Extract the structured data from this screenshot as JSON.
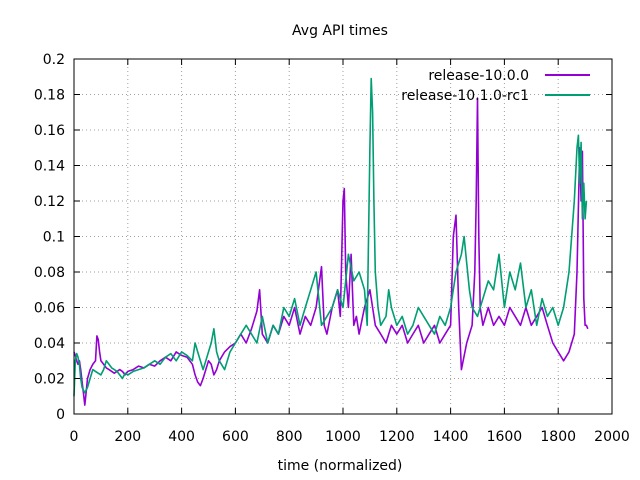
{
  "chart_data": {
    "type": "line",
    "title": "Avg API times",
    "xlabel": "time (normalized)",
    "ylabel": "",
    "xlim": [
      0,
      2000
    ],
    "ylim": [
      0,
      0.2
    ],
    "xticks": [
      "0",
      "200",
      "400",
      "600",
      "800",
      "1000",
      "1200",
      "1400",
      "1600",
      "1800",
      "2000"
    ],
    "yticks": [
      "0",
      "0.02",
      "0.04",
      "0.06",
      "0.08",
      "0.1",
      "0.12",
      "0.14",
      "0.16",
      "0.18",
      "0.2"
    ],
    "grid": true,
    "legend_position": "top-right",
    "series": [
      {
        "name": "release-10.0.0",
        "color": "#9400d3",
        "x": [
          0,
          5,
          10,
          15,
          20,
          25,
          30,
          35,
          40,
          45,
          50,
          60,
          70,
          80,
          85,
          90,
          95,
          100,
          110,
          120,
          130,
          140,
          150,
          160,
          170,
          180,
          190,
          200,
          220,
          240,
          260,
          280,
          300,
          320,
          340,
          360,
          380,
          400,
          420,
          440,
          450,
          460,
          470,
          480,
          490,
          500,
          510,
          520,
          530,
          540,
          560,
          580,
          600,
          620,
          640,
          660,
          680,
          690,
          700,
          720,
          740,
          760,
          780,
          800,
          820,
          840,
          860,
          880,
          900,
          920,
          930,
          940,
          960,
          980,
          990,
          1000,
          1005,
          1010,
          1020,
          1030,
          1040,
          1050,
          1060,
          1080,
          1100,
          1120,
          1140,
          1160,
          1180,
          1200,
          1220,
          1240,
          1260,
          1280,
          1300,
          1320,
          1340,
          1360,
          1380,
          1400,
          1410,
          1420,
          1430,
          1440,
          1460,
          1480,
          1490,
          1495,
          1500,
          1505,
          1510,
          1520,
          1540,
          1560,
          1580,
          1600,
          1620,
          1640,
          1660,
          1680,
          1700,
          1720,
          1740,
          1760,
          1780,
          1800,
          1820,
          1840,
          1860,
          1870,
          1880,
          1885,
          1890,
          1895,
          1900,
          1905,
          1910
        ],
        "y": [
          0.035,
          0.033,
          0.03,
          0.028,
          0.03,
          0.025,
          0.018,
          0.012,
          0.005,
          0.012,
          0.02,
          0.025,
          0.028,
          0.03,
          0.044,
          0.042,
          0.035,
          0.03,
          0.028,
          0.026,
          0.025,
          0.024,
          0.023,
          0.024,
          0.025,
          0.024,
          0.022,
          0.024,
          0.025,
          0.027,
          0.026,
          0.028,
          0.027,
          0.03,
          0.032,
          0.03,
          0.035,
          0.033,
          0.032,
          0.028,
          0.022,
          0.018,
          0.016,
          0.02,
          0.025,
          0.03,
          0.028,
          0.022,
          0.025,
          0.03,
          0.035,
          0.038,
          0.04,
          0.045,
          0.04,
          0.048,
          0.058,
          0.07,
          0.045,
          0.04,
          0.05,
          0.045,
          0.055,
          0.05,
          0.06,
          0.045,
          0.055,
          0.05,
          0.06,
          0.083,
          0.05,
          0.045,
          0.06,
          0.07,
          0.055,
          0.12,
          0.127,
          0.08,
          0.06,
          0.09,
          0.05,
          0.055,
          0.045,
          0.06,
          0.07,
          0.05,
          0.045,
          0.04,
          0.05,
          0.045,
          0.05,
          0.04,
          0.045,
          0.05,
          0.04,
          0.045,
          0.05,
          0.04,
          0.045,
          0.05,
          0.1,
          0.112,
          0.06,
          0.025,
          0.04,
          0.05,
          0.08,
          0.12,
          0.178,
          0.1,
          0.06,
          0.05,
          0.06,
          0.05,
          0.055,
          0.05,
          0.06,
          0.055,
          0.05,
          0.06,
          0.05,
          0.055,
          0.06,
          0.05,
          0.04,
          0.035,
          0.03,
          0.035,
          0.045,
          0.08,
          0.15,
          0.12,
          0.148,
          0.065,
          0.05,
          0.05,
          0.048
        ]
      },
      {
        "name": "release-10.1.0-rc1",
        "color": "#009e73",
        "x": [
          0,
          5,
          10,
          15,
          20,
          25,
          30,
          40,
          50,
          60,
          70,
          80,
          90,
          100,
          110,
          120,
          130,
          140,
          150,
          160,
          170,
          180,
          190,
          200,
          220,
          240,
          260,
          280,
          300,
          320,
          340,
          360,
          380,
          400,
          420,
          440,
          450,
          460,
          470,
          480,
          490,
          500,
          510,
          520,
          530,
          540,
          560,
          580,
          600,
          620,
          640,
          660,
          680,
          700,
          720,
          740,
          760,
          780,
          800,
          820,
          840,
          860,
          880,
          900,
          920,
          940,
          960,
          980,
          1000,
          1020,
          1040,
          1060,
          1080,
          1090,
          1100,
          1105,
          1110,
          1115,
          1120,
          1130,
          1140,
          1160,
          1170,
          1180,
          1200,
          1220,
          1240,
          1260,
          1280,
          1300,
          1320,
          1340,
          1360,
          1380,
          1400,
          1420,
          1440,
          1450,
          1460,
          1470,
          1480,
          1500,
          1520,
          1540,
          1560,
          1580,
          1600,
          1620,
          1640,
          1660,
          1680,
          1700,
          1720,
          1740,
          1760,
          1780,
          1800,
          1820,
          1840,
          1860,
          1870,
          1875,
          1880,
          1885,
          1890,
          1895,
          1900,
          1905
        ],
        "y": [
          0.01,
          0.03,
          0.034,
          0.032,
          0.028,
          0.02,
          0.015,
          0.012,
          0.015,
          0.02,
          0.025,
          0.024,
          0.023,
          0.022,
          0.025,
          0.03,
          0.028,
          0.026,
          0.025,
          0.024,
          0.022,
          0.02,
          0.023,
          0.022,
          0.024,
          0.025,
          0.026,
          0.028,
          0.03,
          0.028,
          0.032,
          0.034,
          0.03,
          0.035,
          0.033,
          0.03,
          0.04,
          0.035,
          0.03,
          0.025,
          0.03,
          0.035,
          0.04,
          0.048,
          0.035,
          0.03,
          0.025,
          0.035,
          0.04,
          0.045,
          0.05,
          0.045,
          0.04,
          0.055,
          0.04,
          0.05,
          0.045,
          0.06,
          0.055,
          0.065,
          0.05,
          0.06,
          0.07,
          0.08,
          0.05,
          0.055,
          0.06,
          0.07,
          0.06,
          0.09,
          0.075,
          0.08,
          0.07,
          0.05,
          0.15,
          0.189,
          0.17,
          0.12,
          0.08,
          0.06,
          0.05,
          0.055,
          0.07,
          0.06,
          0.05,
          0.055,
          0.045,
          0.05,
          0.06,
          0.055,
          0.05,
          0.045,
          0.055,
          0.05,
          0.06,
          0.08,
          0.09,
          0.1,
          0.085,
          0.07,
          0.06,
          0.055,
          0.065,
          0.075,
          0.07,
          0.09,
          0.06,
          0.08,
          0.07,
          0.085,
          0.06,
          0.07,
          0.05,
          0.065,
          0.055,
          0.06,
          0.05,
          0.06,
          0.08,
          0.12,
          0.15,
          0.157,
          0.13,
          0.153,
          0.11,
          0.13,
          0.11,
          0.12
        ]
      }
    ]
  }
}
